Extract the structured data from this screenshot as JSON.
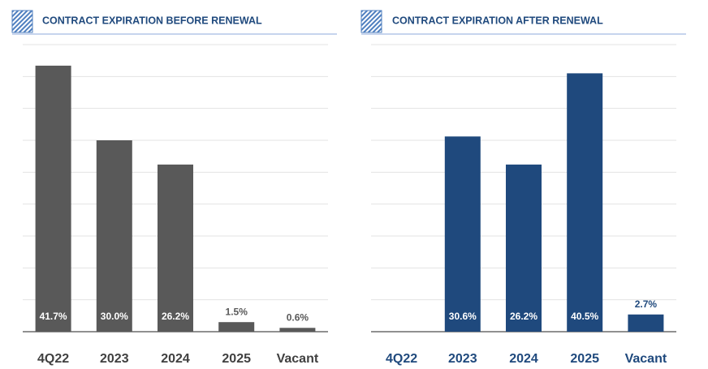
{
  "chart_data": [
    {
      "type": "bar",
      "title": "CONTRACT EXPIRATION BEFORE RENEWAL",
      "categories": [
        "4Q22",
        "2023",
        "2024",
        "2025",
        "Vacant"
      ],
      "values": [
        41.7,
        30.0,
        26.2,
        1.5,
        0.6
      ],
      "value_labels": [
        "41.7%",
        "30.0%",
        "26.2%",
        "1.5%",
        "0.6%"
      ],
      "color": "#595959",
      "ylim": [
        0,
        45
      ],
      "yticks": [
        0,
        5,
        10,
        15,
        20,
        25,
        30,
        35,
        40,
        45
      ],
      "grid": true
    },
    {
      "type": "bar",
      "title": "CONTRACT EXPIRATION AFTER RENEWAL",
      "categories": [
        "4Q22",
        "2023",
        "2024",
        "2025",
        "Vacant"
      ],
      "values": [
        null,
        30.6,
        26.2,
        40.5,
        2.7
      ],
      "value_labels": [
        null,
        "30.6%",
        "26.2%",
        "40.5%",
        "2.7%"
      ],
      "color": "#1f497d",
      "ylim": [
        0,
        45
      ],
      "yticks": [
        0,
        5,
        10,
        15,
        20,
        25,
        30,
        35,
        40,
        45
      ],
      "grid": true
    }
  ]
}
